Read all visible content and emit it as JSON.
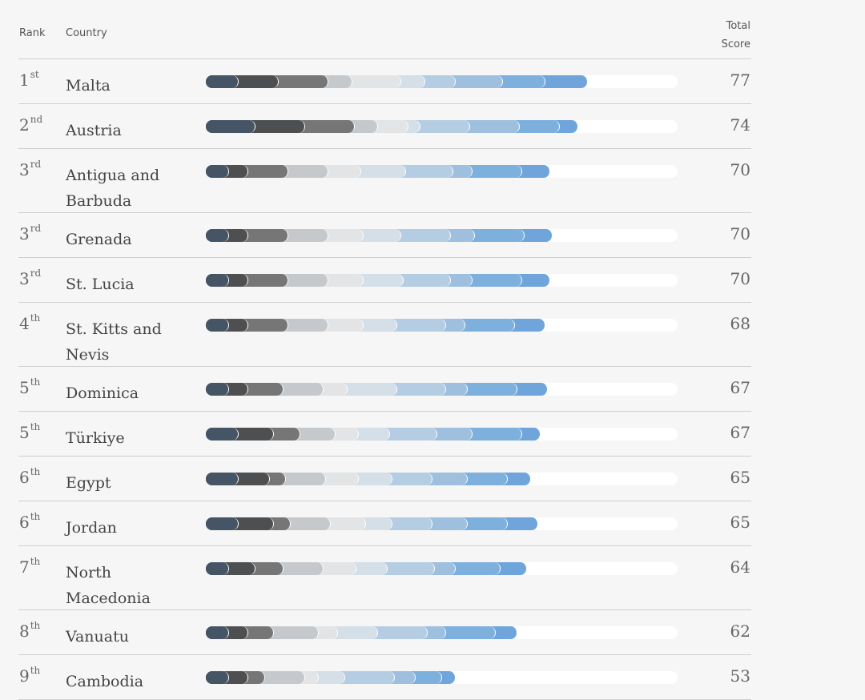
{
  "header": {
    "rank_label": "Rank",
    "country_label": "Country",
    "total_label_line1": "Total",
    "total_label_line2": "Score"
  },
  "chart_data": {
    "type": "bar",
    "stacked": true,
    "xlim": [
      0,
      100
    ],
    "colors": [
      "#455565",
      "#4e4f51",
      "#767676",
      "#c6c9cb",
      "#e3e4e5",
      "#d4dfe8",
      "#b5cde3",
      "#9ec0de",
      "#7eb0de",
      "#6fa5db"
    ],
    "rows": [
      {
        "rank": "1",
        "suffix": "st",
        "country": "Malta",
        "score": "77",
        "segments": [
          7,
          8.5,
          10.5,
          5,
          10.5,
          5,
          6.5,
          10,
          9,
          9
        ]
      },
      {
        "rank": "2",
        "suffix": "nd",
        "country": "Austria",
        "score": "74",
        "segments": [
          10.5,
          10.5,
          10.5,
          5,
          6.5,
          2.5,
          10.5,
          10.5,
          8.5,
          4
        ]
      },
      {
        "rank": "3",
        "suffix": "rd",
        "country": "Antigua and Barbuda",
        "score": "70",
        "segments": [
          5,
          4,
          8.5,
          8.5,
          7,
          9.5,
          10,
          4,
          10.5,
          6
        ]
      },
      {
        "rank": "3",
        "suffix": "rd",
        "country": "Grenada",
        "score": "70",
        "segments": [
          5,
          4,
          8.5,
          8.5,
          7.5,
          8,
          10.5,
          5,
          10.5,
          6
        ]
      },
      {
        "rank": "3",
        "suffix": "rd",
        "country": "St. Lucia",
        "score": "70",
        "segments": [
          5,
          4,
          8.5,
          8.5,
          7.5,
          8.5,
          10,
          4.5,
          10.5,
          6
        ]
      },
      {
        "rank": "4",
        "suffix": "th",
        "country": "St. Kitts and Nevis",
        "score": "68",
        "segments": [
          5,
          4,
          8.5,
          8.5,
          7.5,
          7,
          10.5,
          4,
          10.5,
          6.5
        ]
      },
      {
        "rank": "5",
        "suffix": "th",
        "country": "Dominica",
        "score": "67",
        "segments": [
          5,
          4,
          7.5,
          8.5,
          5,
          10.5,
          10.5,
          4.5,
          10.5,
          6.5
        ]
      },
      {
        "rank": "5",
        "suffix": "th",
        "country": "Türkiye",
        "score": "67",
        "segments": [
          7,
          7.5,
          5.5,
          7.5,
          5,
          6.5,
          10,
          7.5,
          10.5,
          4
        ]
      },
      {
        "rank": "6",
        "suffix": "th",
        "country": "Egypt",
        "score": "65",
        "segments": [
          7,
          6.5,
          3.5,
          8.5,
          7,
          7,
          8.5,
          7.5,
          8.5,
          5
        ]
      },
      {
        "rank": "6",
        "suffix": "th",
        "country": "Jordan",
        "score": "65",
        "segments": [
          7,
          7.5,
          3.5,
          8.5,
          7.5,
          5.5,
          8.5,
          7.5,
          8.5,
          6.5
        ]
      },
      {
        "rank": "7",
        "suffix": "th",
        "country": "North Macedonia",
        "score": "64",
        "segments": [
          5,
          5.5,
          6,
          8.5,
          7,
          6.5,
          10,
          4.5,
          9.5,
          5.5
        ]
      },
      {
        "rank": "8",
        "suffix": "th",
        "country": "Vanuatu",
        "score": "62",
        "segments": [
          5,
          4,
          5.5,
          9.5,
          4,
          8.5,
          10.5,
          4,
          10.5,
          4.5
        ]
      },
      {
        "rank": "9",
        "suffix": "th",
        "country": "Cambodia",
        "score": "53",
        "segments": [
          5,
          4,
          3.5,
          8.5,
          3,
          5.5,
          10.5,
          4.5,
          5.5,
          3
        ]
      }
    ]
  }
}
